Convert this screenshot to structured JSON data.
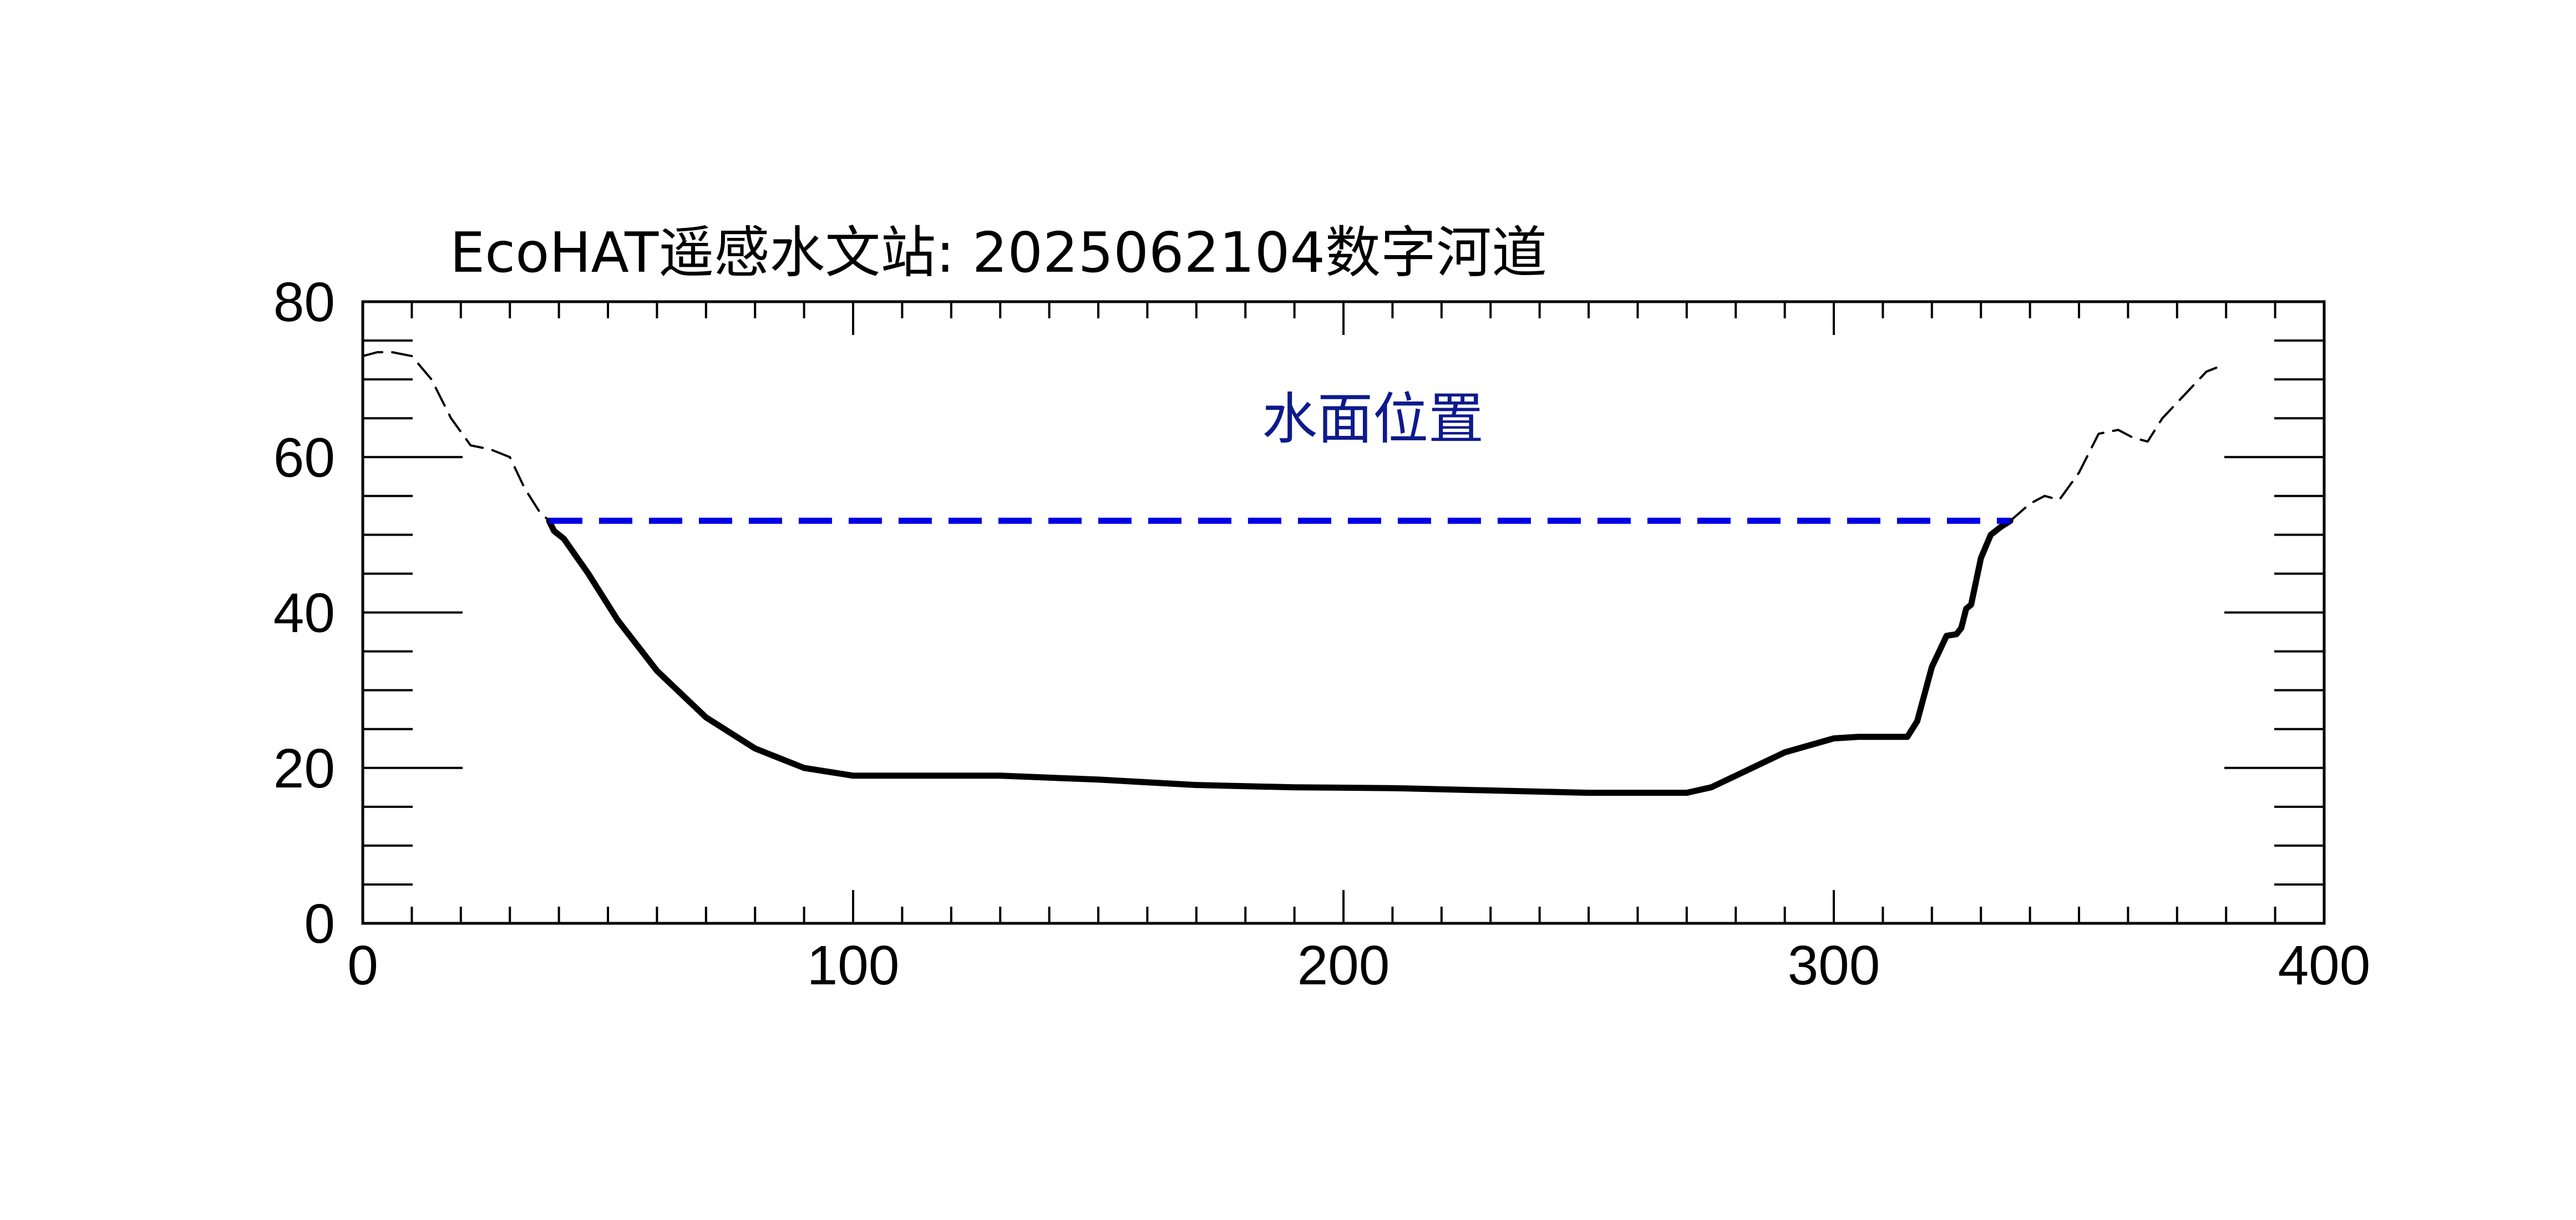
{
  "chart_data": {
    "type": "line",
    "title": "EcoHAT遥感水文站: 2025062104数字河道",
    "xlabel": "",
    "ylabel": "",
    "xlim": [
      0,
      400
    ],
    "ylim": [
      0,
      80
    ],
    "x_ticks": [
      0,
      100,
      200,
      300,
      400
    ],
    "y_ticks": [
      0,
      20,
      40,
      60,
      80
    ],
    "grid": false,
    "legend": "none",
    "annotation": "水面位置",
    "water_level": {
      "value": 51.8,
      "x_start": 38,
      "x_end": 336,
      "color": "#0000e6",
      "style": "dashed"
    },
    "series": [
      {
        "style": "dashed-thin",
        "color": "#000000",
        "x": [
          0,
          3,
          6,
          10,
          14,
          18,
          22,
          26,
          30,
          33,
          36,
          38
        ],
        "y": [
          73,
          73.5,
          73.5,
          73,
          70,
          65,
          61.5,
          61,
          60,
          56,
          53,
          51.8
        ]
      },
      {
        "style": "solid-thick",
        "color": "#000000",
        "x": [
          38,
          39,
          41,
          46,
          52,
          60,
          70,
          80,
          90,
          100,
          110,
          130,
          150,
          170,
          190,
          210,
          230,
          250,
          270,
          275,
          280,
          290,
          300,
          305,
          310,
          315,
          317,
          320,
          323,
          325,
          326,
          327,
          328,
          330,
          332,
          334,
          336
        ],
        "y": [
          51.8,
          50.5,
          49.5,
          45,
          39,
          32.5,
          26.5,
          22.5,
          20,
          19,
          19,
          19,
          18.5,
          17.8,
          17.5,
          17.4,
          17.1,
          16.8,
          16.8,
          17.5,
          19,
          22,
          23.8,
          24,
          24,
          24,
          26,
          33,
          37,
          37.2,
          38,
          40.5,
          41,
          47,
          50,
          51,
          51.8
        ]
      },
      {
        "style": "dashed-thin",
        "color": "#000000",
        "x": [
          336,
          340,
          343,
          346,
          350,
          354,
          358,
          361,
          364,
          367,
          370,
          373,
          376,
          378
        ],
        "y": [
          51.8,
          54,
          55,
          54.5,
          58,
          63,
          63.5,
          62.5,
          62,
          65,
          67,
          69,
          71,
          71.5
        ]
      }
    ]
  }
}
